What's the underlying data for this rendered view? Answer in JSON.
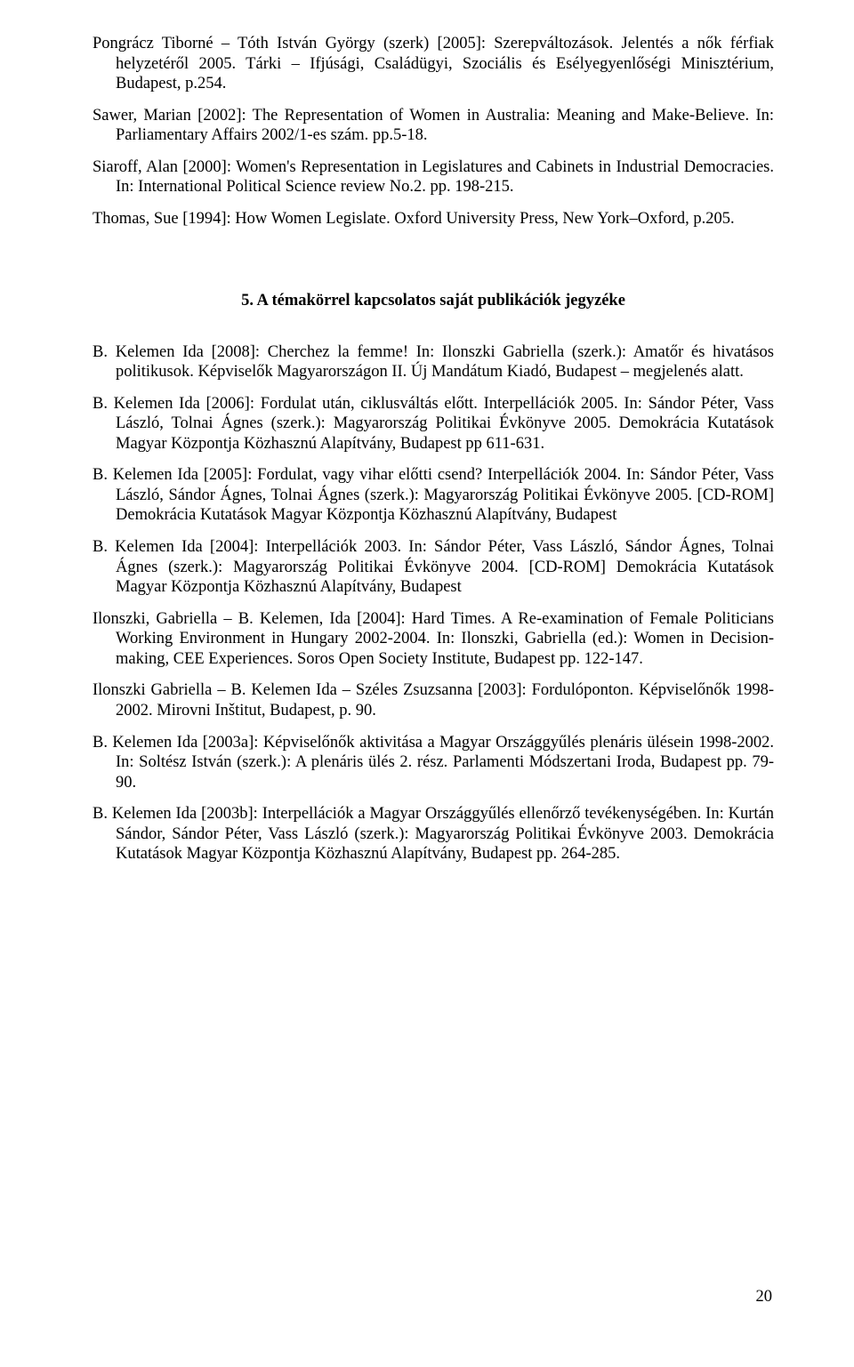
{
  "refs": [
    "Pongrácz Tiborné – Tóth István György (szerk) [2005]: Szerepváltozások. Jelentés a nők férfiak helyzetéről 2005. Tárki – Ifjúsági, Családügyi, Szociális és Esélyegyenlőségi Minisztérium, Budapest, p.254.",
    "Sawer, Marian [2002]: The Representation of Women in Australia: Meaning and Make-Believe. In: Parliamentary Affairs 2002/1-es szám. pp.5-18.",
    "Siaroff, Alan [2000]: Women's Representation in Legislatures and Cabinets in Industrial Democracies. In: International Political Science review No.2. pp. 198-215.",
    "Thomas, Sue [1994]: How Women Legislate. Oxford University Press, New York–Oxford, p.205."
  ],
  "section_title": "5. A témakörrel kapcsolatos saját publikációk jegyzéke",
  "pubs": [
    "B. Kelemen Ida [2008]: Cherchez la femme! In: Ilonszki Gabriella (szerk.): Amatőr és hivatásos politikusok. Képviselők Magyarországon II. Új Mandátum Kiadó, Budapest – megjelenés alatt.",
    "B. Kelemen Ida [2006]: Fordulat után, ciklusváltás előtt. Interpellációk 2005. In: Sándor Péter, Vass László, Tolnai Ágnes (szerk.): Magyarország Politikai Évkönyve 2005. Demokrácia Kutatások Magyar Központja Közhasznú Alapítvány, Budapest pp 611-631.",
    "B. Kelemen Ida [2005]: Fordulat, vagy vihar előtti csend? Interpellációk 2004. In: Sándor Péter, Vass László, Sándor Ágnes, Tolnai Ágnes (szerk.): Magyarország Politikai Évkönyve 2005. [CD-ROM] Demokrácia Kutatások Magyar Központja Közhasznú Alapítvány, Budapest",
    "B. Kelemen Ida [2004]: Interpellációk 2003. In: Sándor Péter, Vass László, Sándor Ágnes, Tolnai Ágnes (szerk.): Magyarország Politikai Évkönyve 2004. [CD-ROM] Demokrácia Kutatások Magyar Központja Közhasznú Alapítvány, Budapest",
    "Ilonszki, Gabriella – B. Kelemen, Ida [2004]: Hard Times. A Re-examination of Female Politicians Working Environment in Hungary 2002-2004. In: Ilonszki, Gabriella (ed.): Women in Decision-making, CEE Experiences. Soros Open Society Institute, Budapest pp. 122-147.",
    "Ilonszki Gabriella – B. Kelemen Ida – Széles Zsuzsanna [2003]: Fordulóponton. Képviselőnők 1998-2002. Mirovni Inštitut, Budapest, p. 90.",
    "B. Kelemen Ida [2003a]: Képviselőnők aktivitása a Magyar Országgyűlés plenáris ülésein 1998-2002. In: Soltész István (szerk.): A plenáris ülés 2. rész. Parlamenti Módszertani Iroda, Budapest pp. 79-90.",
    "B. Kelemen Ida [2003b]: Interpellációk a Magyar Országgyűlés ellenőrző tevékenységében. In: Kurtán Sándor, Sándor Péter, Vass László (szerk.): Magyarország Politikai Évkönyve 2003. Demokrácia Kutatások Magyar Központja Közhasznú Alapítvány, Budapest pp. 264-285."
  ],
  "page_number": "20"
}
